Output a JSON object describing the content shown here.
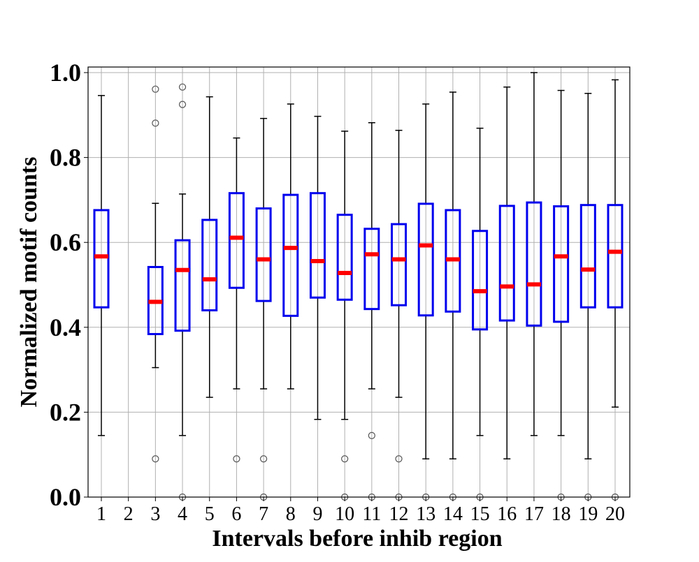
{
  "chart_data": {
    "type": "box",
    "title": "",
    "xlabel": "Intervals before inhib region",
    "ylabel": "Normalized motif counts",
    "categories": [
      "1",
      "2",
      "3",
      "4",
      "5",
      "6",
      "7",
      "8",
      "9",
      "10",
      "11",
      "12",
      "13",
      "14",
      "15",
      "16",
      "17",
      "18",
      "19",
      "20"
    ],
    "ylim": [
      0,
      1.0
    ],
    "yticks": [
      "0.0",
      "0.2",
      "0.4",
      "0.6",
      "0.8",
      "1.0"
    ],
    "grid": true,
    "colors": {
      "box": "#0000ee",
      "median": "#ff0000",
      "whisker": "#000000",
      "grid": "#b0b0b0",
      "outlier": "#555555"
    },
    "boxes": [
      {
        "category": "1",
        "whislo": 0.145,
        "q1": 0.447,
        "median": 0.567,
        "q3": 0.676,
        "whishi": 0.946,
        "fliers": []
      },
      {
        "category": "2",
        "whislo": null,
        "q1": null,
        "median": null,
        "q3": null,
        "whishi": null,
        "fliers": []
      },
      {
        "category": "3",
        "whislo": 0.305,
        "q1": 0.384,
        "median": 0.46,
        "q3": 0.542,
        "whishi": 0.692,
        "fliers": [
          0.09,
          0.881,
          0.961
        ]
      },
      {
        "category": "4",
        "whislo": 0.145,
        "q1": 0.392,
        "median": 0.535,
        "q3": 0.605,
        "whishi": 0.714,
        "fliers": [
          0.0,
          0.925,
          0.966
        ]
      },
      {
        "category": "5",
        "whislo": 0.235,
        "q1": 0.44,
        "median": 0.513,
        "q3": 0.653,
        "whishi": 0.943,
        "fliers": []
      },
      {
        "category": "6",
        "whislo": 0.255,
        "q1": 0.493,
        "median": 0.611,
        "q3": 0.716,
        "whishi": 0.846,
        "fliers": [
          0.09
        ]
      },
      {
        "category": "7",
        "whislo": 0.255,
        "q1": 0.462,
        "median": 0.56,
        "q3": 0.68,
        "whishi": 0.892,
        "fliers": [
          0.0,
          0.09
        ]
      },
      {
        "category": "8",
        "whislo": 0.255,
        "q1": 0.427,
        "median": 0.587,
        "q3": 0.712,
        "whishi": 0.926,
        "fliers": []
      },
      {
        "category": "9",
        "whislo": 0.183,
        "q1": 0.47,
        "median": 0.556,
        "q3": 0.716,
        "whishi": 0.897,
        "fliers": []
      },
      {
        "category": "10",
        "whislo": 0.183,
        "q1": 0.465,
        "median": 0.528,
        "q3": 0.665,
        "whishi": 0.862,
        "fliers": [
          0.0,
          0.09
        ]
      },
      {
        "category": "11",
        "whislo": 0.255,
        "q1": 0.443,
        "median": 0.572,
        "q3": 0.632,
        "whishi": 0.882,
        "fliers": [
          0.0,
          0.145
        ]
      },
      {
        "category": "12",
        "whislo": 0.235,
        "q1": 0.452,
        "median": 0.56,
        "q3": 0.643,
        "whishi": 0.864,
        "fliers": [
          0.0,
          0.09
        ]
      },
      {
        "category": "13",
        "whislo": 0.09,
        "q1": 0.428,
        "median": 0.593,
        "q3": 0.691,
        "whishi": 0.926,
        "fliers": [
          0.0
        ]
      },
      {
        "category": "14",
        "whislo": 0.09,
        "q1": 0.437,
        "median": 0.56,
        "q3": 0.676,
        "whishi": 0.954,
        "fliers": [
          0.0
        ]
      },
      {
        "category": "15",
        "whislo": 0.145,
        "q1": 0.395,
        "median": 0.485,
        "q3": 0.627,
        "whishi": 0.869,
        "fliers": [
          0.0
        ]
      },
      {
        "category": "16",
        "whislo": 0.09,
        "q1": 0.416,
        "median": 0.496,
        "q3": 0.686,
        "whishi": 0.966,
        "fliers": []
      },
      {
        "category": "17",
        "whislo": 0.145,
        "q1": 0.404,
        "median": 0.501,
        "q3": 0.694,
        "whishi": 1.0,
        "fliers": []
      },
      {
        "category": "18",
        "whislo": 0.145,
        "q1": 0.413,
        "median": 0.567,
        "q3": 0.685,
        "whishi": 0.958,
        "fliers": [
          0.0
        ]
      },
      {
        "category": "19",
        "whislo": 0.09,
        "q1": 0.447,
        "median": 0.536,
        "q3": 0.688,
        "whishi": 0.951,
        "fliers": [
          0.0
        ]
      },
      {
        "category": "20",
        "whislo": 0.212,
        "q1": 0.447,
        "median": 0.578,
        "q3": 0.688,
        "whishi": 0.983,
        "fliers": [
          0.0
        ]
      }
    ]
  }
}
